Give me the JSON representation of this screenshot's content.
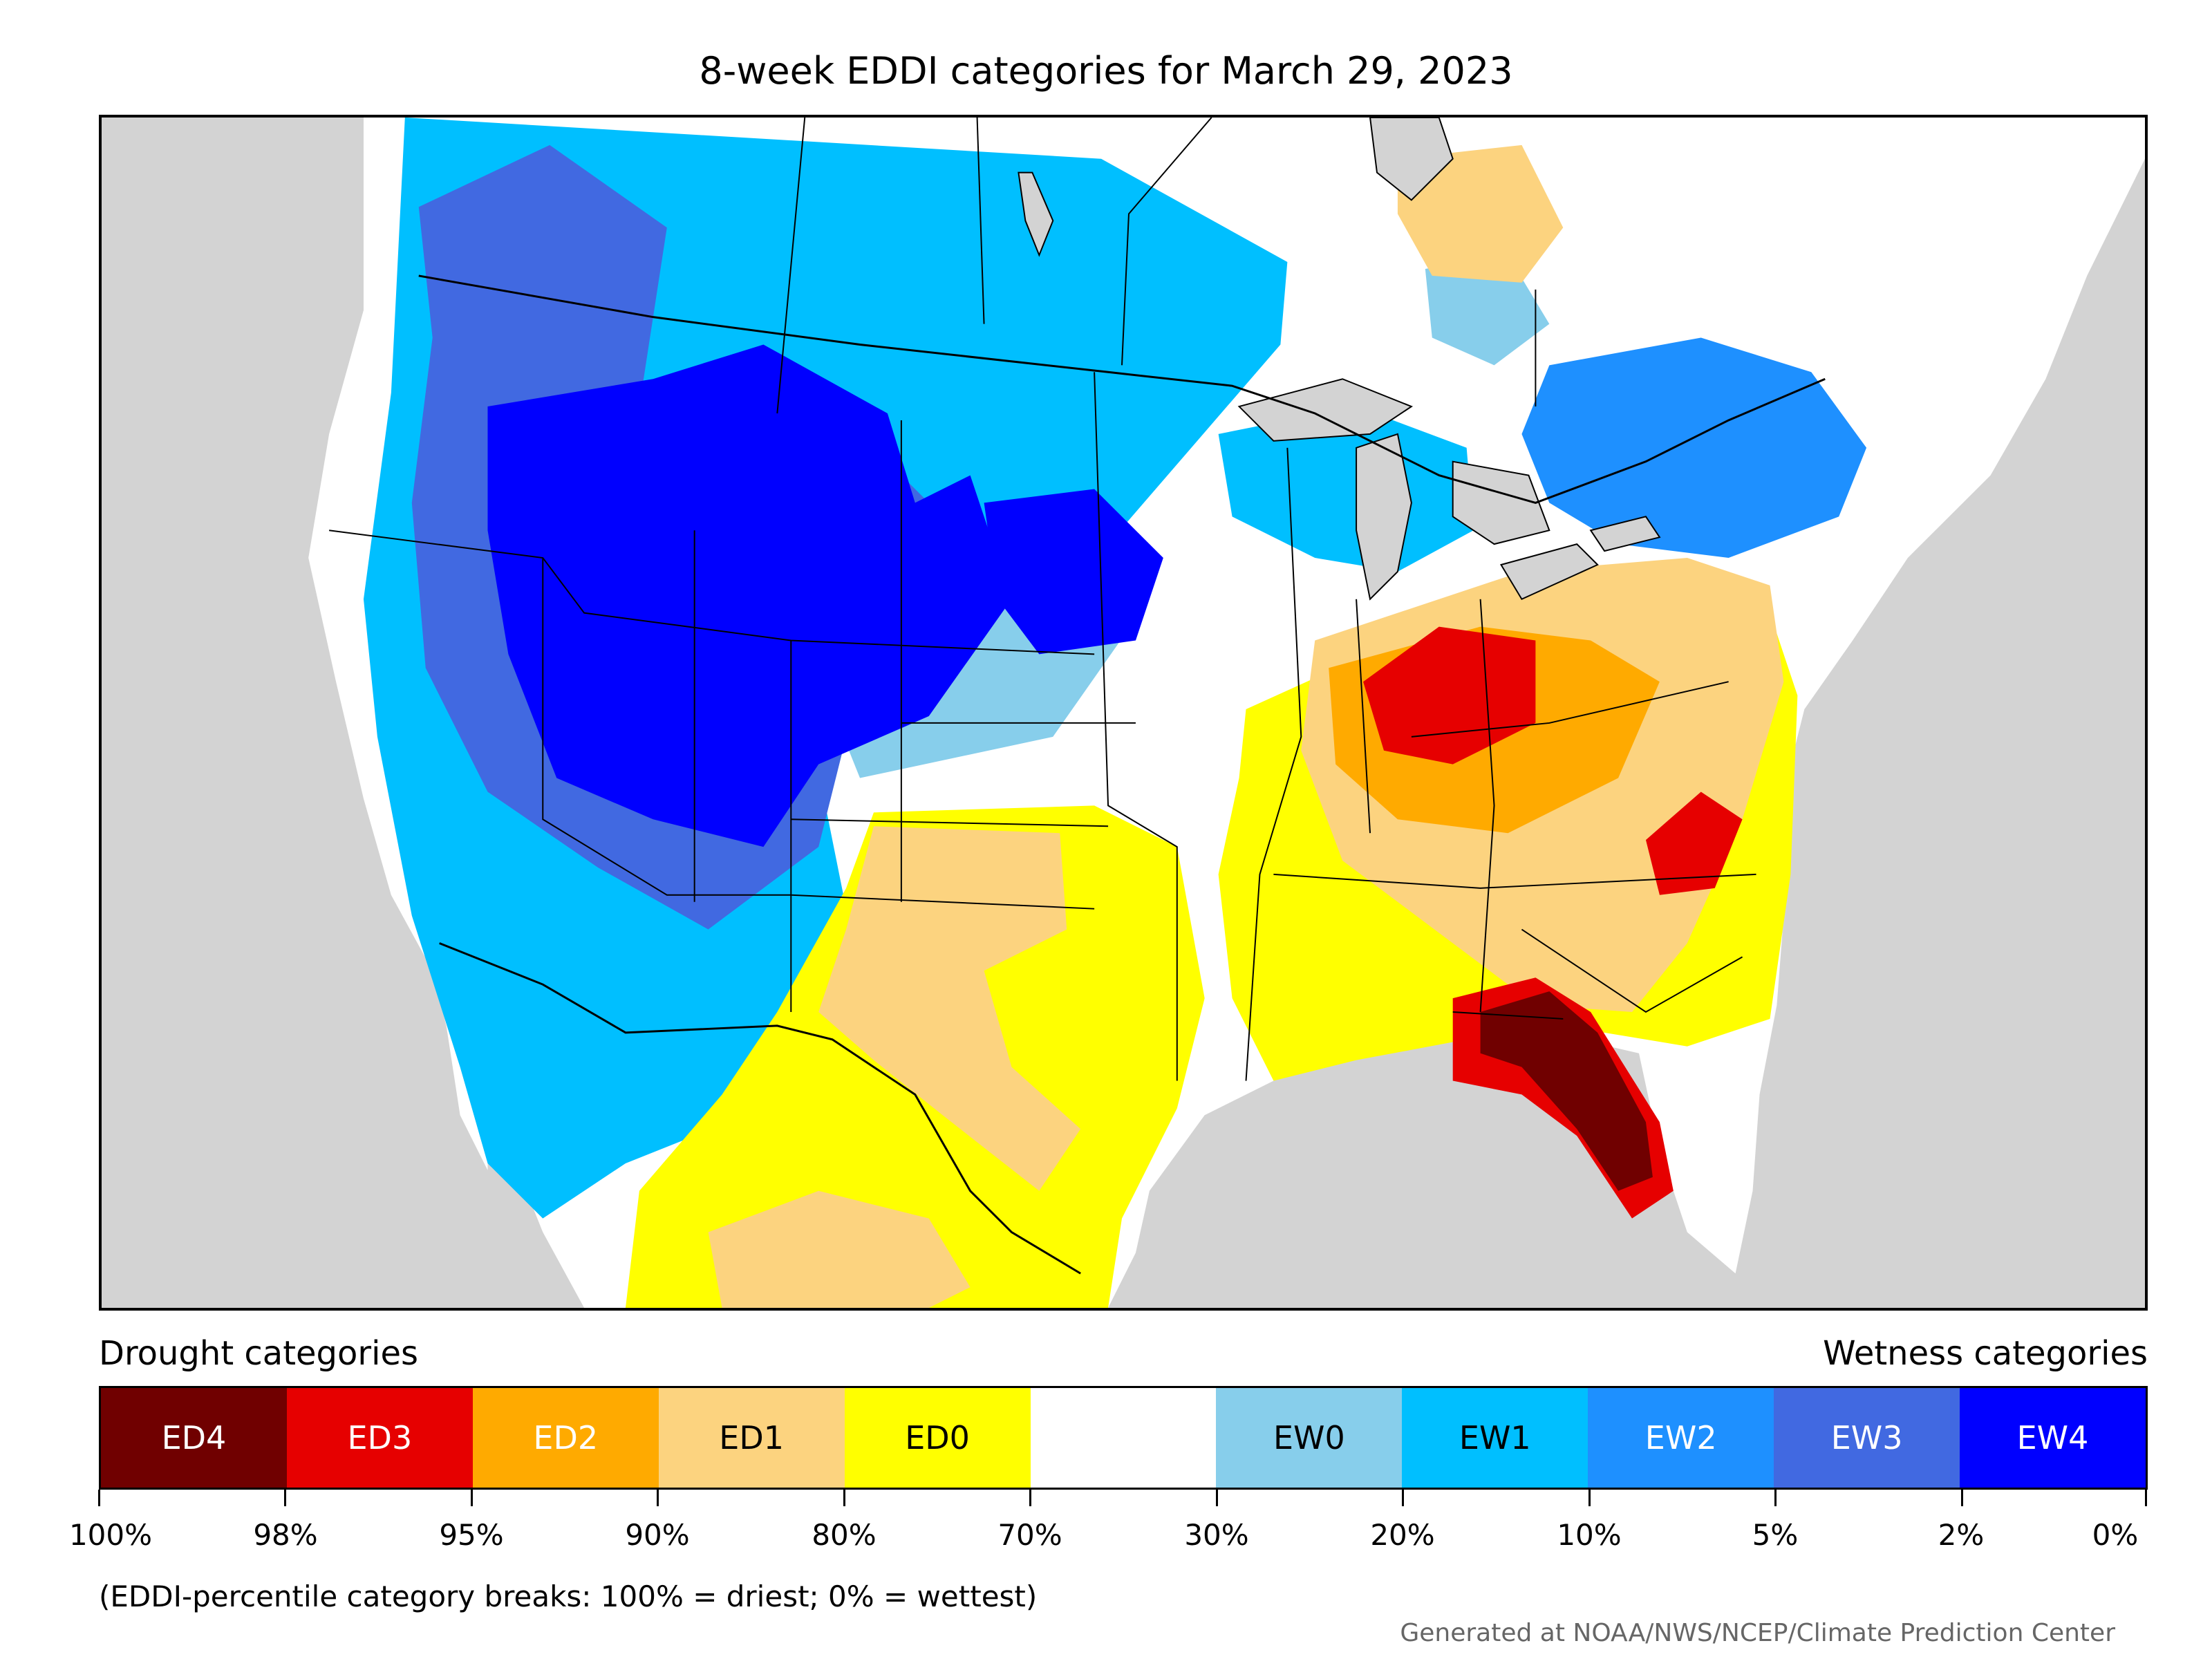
{
  "title": "8-week EDDI categories for March 29, 2023",
  "captions": {
    "drought": "Drought categories",
    "wetness": "Wetness categories"
  },
  "legend": {
    "categories": [
      {
        "label": "ED4",
        "color": "#700000",
        "text_color": "#ffffff"
      },
      {
        "label": "ED3",
        "color": "#e60000",
        "text_color": "#ffffff"
      },
      {
        "label": "ED2",
        "color": "#ffaa00",
        "text_color": "#ffffff"
      },
      {
        "label": "ED1",
        "color": "#fcd37f",
        "text_color": "#000000"
      },
      {
        "label": "ED0",
        "color": "#ffff00",
        "text_color": "#000000"
      },
      {
        "label": "",
        "color": "#ffffff",
        "text_color": "#000000"
      },
      {
        "label": "EW0",
        "color": "#87ceeb",
        "text_color": "#000000"
      },
      {
        "label": "EW1",
        "color": "#00bfff",
        "text_color": "#000000"
      },
      {
        "label": "EW2",
        "color": "#1e90ff",
        "text_color": "#ffffff"
      },
      {
        "label": "EW3",
        "color": "#4169e1",
        "text_color": "#ffffff"
      },
      {
        "label": "EW4",
        "color": "#0000ff",
        "text_color": "#ffffff"
      }
    ],
    "breaks": [
      "100%",
      "98%",
      "95%",
      "90%",
      "80%",
      "70%",
      "30%",
      "20%",
      "10%",
      "5%",
      "2%",
      "0%"
    ]
  },
  "footnote": "(EDDI-percentile category breaks: 100% = driest; 0% = wettest)",
  "credit": "Generated at NOAA/NWS/NCEP/Climate Prediction Center",
  "colors": {
    "ocean": "#d3d3d3",
    "lakes": "#d3d3d3",
    "borders": "#000000"
  }
}
